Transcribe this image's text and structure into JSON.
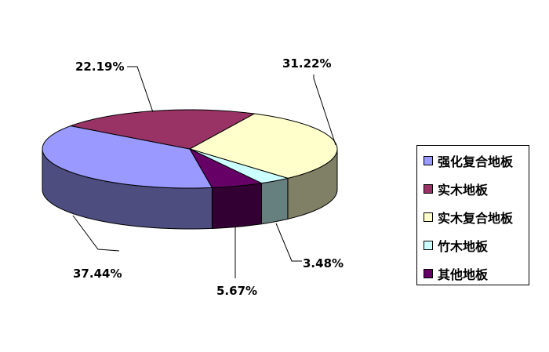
{
  "chart_data": {
    "type": "pie",
    "style": "3d",
    "categories": [
      "强化复合地板",
      "实木地板",
      "实木复合地板",
      "竹木地板",
      "其他地板"
    ],
    "values": [
      37.44,
      22.19,
      31.22,
      3.48,
      5.67
    ],
    "labels": [
      "37.44%",
      "22.19%",
      "31.22%",
      "3.48%",
      "5.67%"
    ],
    "colors": [
      "#9999FF",
      "#993366",
      "#FFFFCC",
      "#CCFFFF",
      "#660066"
    ],
    "side_colors": [
      "#4D4D80",
      "#4D1A33",
      "#808066",
      "#668080",
      "#330033"
    ],
    "legend_position": "right"
  }
}
